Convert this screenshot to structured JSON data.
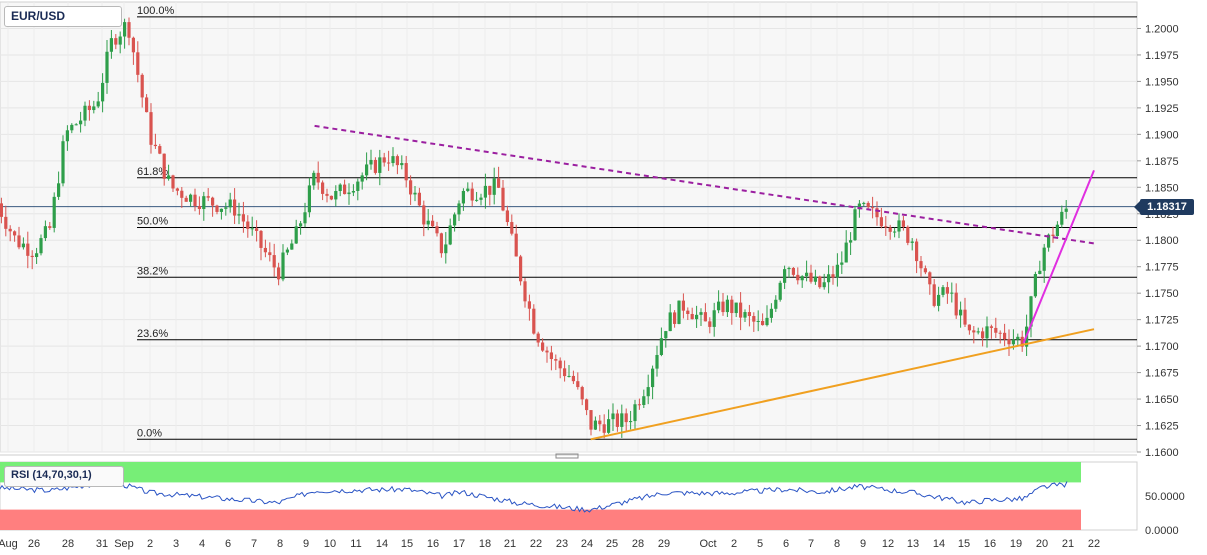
{
  "app": {
    "symbol": "EUR/USD"
  },
  "colors": {
    "up": "#2e9e4a",
    "down": "#d9534f",
    "fib": "#000000",
    "resistance": "#9b1fa0",
    "support": "#f0a020",
    "channel": "#e02fe0",
    "rsi_line": "#2a54c4",
    "rsi_overbought": "#77ee77",
    "rsi_oversold": "#ff7f7f",
    "grid": "#e6e6e6",
    "badge": "#1f3a5f"
  },
  "chart_data": {
    "type": "candlestick",
    "title": "",
    "symbol": "EUR/USD",
    "interval": "4H",
    "current_price": "1.18317",
    "ylim": [
      1.16,
      1.2025
    ],
    "y_ticks": [
      "1.2000",
      "1.1975",
      "1.1950",
      "1.1925",
      "1.1900",
      "1.1875",
      "1.1850",
      "1.1825",
      "1.1800",
      "1.1775",
      "1.1750",
      "1.1725",
      "1.1700",
      "1.1675",
      "1.1650",
      "1.1625",
      "1.1600"
    ],
    "x_ticks": [
      "Aug",
      "26",
      "28",
      "31",
      "Sep",
      "2",
      "3",
      "4",
      "6",
      "7",
      "8",
      "9",
      "10",
      "11",
      "14",
      "15",
      "16",
      "17",
      "18",
      "21",
      "22",
      "23",
      "24",
      "25",
      "28",
      "29",
      "Oct",
      "2",
      "5",
      "6",
      "7",
      "8",
      "9",
      "12",
      "13",
      "14",
      "15",
      "16",
      "19",
      "20",
      "21",
      "22"
    ],
    "fibonacci": [
      {
        "label": "100.0%",
        "value": 1.2011
      },
      {
        "label": "61.8%",
        "value": 1.1859
      },
      {
        "label": "50.0%",
        "value": 1.1812
      },
      {
        "label": "38.2%",
        "value": 1.1765
      },
      {
        "label": "23.6%",
        "value": 1.1706
      },
      {
        "label": "0.0%",
        "value": 1.1612
      }
    ],
    "anchors": [
      {
        "d": "Aug 24",
        "v": 1.1835
      },
      {
        "d": "Aug 25",
        "v": 1.18
      },
      {
        "d": "Aug 26",
        "v": 1.179
      },
      {
        "d": "Aug 27",
        "v": 1.181
      },
      {
        "d": "Aug 28",
        "v": 1.19
      },
      {
        "d": "Aug 30",
        "v": 1.193
      },
      {
        "d": "Aug 31",
        "v": 1.199
      },
      {
        "d": "Sep 1",
        "v": 1.2005
      },
      {
        "d": "Sep 2",
        "v": 1.19
      },
      {
        "d": "Sep 3",
        "v": 1.185
      },
      {
        "d": "Sep 4",
        "v": 1.184
      },
      {
        "d": "Sep 6",
        "v": 1.183
      },
      {
        "d": "Sep 7",
        "v": 1.18
      },
      {
        "d": "Sep 8",
        "v": 1.177
      },
      {
        "d": "Sep 9",
        "v": 1.1805
      },
      {
        "d": "Sep 10",
        "v": 1.186
      },
      {
        "d": "Sep 11",
        "v": 1.184
      },
      {
        "d": "Sep 14",
        "v": 1.188
      },
      {
        "d": "Sep 15",
        "v": 1.186
      },
      {
        "d": "Sep 16",
        "v": 1.182
      },
      {
        "d": "Sep 17",
        "v": 1.179
      },
      {
        "d": "Sep 18",
        "v": 1.1845
      },
      {
        "d": "Sep 20",
        "v": 1.185
      },
      {
        "d": "Sep 21",
        "v": 1.178
      },
      {
        "d": "Sep 22",
        "v": 1.1715
      },
      {
        "d": "Sep 23",
        "v": 1.1685
      },
      {
        "d": "Sep 24",
        "v": 1.167
      },
      {
        "d": "Sep 25",
        "v": 1.1625
      },
      {
        "d": "Sep 27",
        "v": 1.163
      },
      {
        "d": "Sep 28",
        "v": 1.1665
      },
      {
        "d": "Sep 29",
        "v": 1.172
      },
      {
        "d": "Sep 30",
        "v": 1.174
      },
      {
        "d": "Oct 1",
        "v": 1.172
      },
      {
        "d": "Oct 2",
        "v": 1.174
      },
      {
        "d": "Oct 4",
        "v": 1.1715
      },
      {
        "d": "Oct 5",
        "v": 1.178
      },
      {
        "d": "Oct 6",
        "v": 1.1765
      },
      {
        "d": "Oct 7",
        "v": 1.1755
      },
      {
        "d": "Oct 8",
        "v": 1.1775
      },
      {
        "d": "Oct 9",
        "v": 1.183
      },
      {
        "d": "Oct 11",
        "v": 1.1815
      },
      {
        "d": "Oct 12",
        "v": 1.18
      },
      {
        "d": "Oct 13",
        "v": 1.1745
      },
      {
        "d": "Oct 14",
        "v": 1.175
      },
      {
        "d": "Oct 15",
        "v": 1.171
      },
      {
        "d": "Oct 16",
        "v": 1.1715
      },
      {
        "d": "Oct 18",
        "v": 1.1705
      },
      {
        "d": "Oct 19",
        "v": 1.179
      },
      {
        "d": "Oct 20",
        "v": 1.1832
      }
    ],
    "trendlines": [
      {
        "name": "resistance",
        "style": "dashed",
        "from": {
          "d": "Sep 10",
          "v": 1.1908
        },
        "to": {
          "d": "Oct 21",
          "v": 1.1797
        }
      },
      {
        "name": "support",
        "style": "solid",
        "from": {
          "d": "Sep 25",
          "v": 1.1612
        },
        "to": {
          "d": "Oct 21",
          "v": 1.1716
        }
      },
      {
        "name": "channel",
        "style": "solid",
        "from": {
          "d": "Oct 18",
          "v": 1.1703
        },
        "to": {
          "d": "Oct 21",
          "v": 1.1866
        }
      }
    ],
    "rsi": {
      "label": "RSI (14,70,30,1)",
      "params": [
        14,
        70,
        30,
        1
      ],
      "ylim": [
        0,
        100
      ],
      "y_ticks": [
        "50.0000",
        "0.0000"
      ],
      "overbought": 70,
      "oversold": 30,
      "anchors": [
        {
          "d": "Aug 24",
          "v": 62
        },
        {
          "d": "Aug 27",
          "v": 58
        },
        {
          "d": "Aug 31",
          "v": 72
        },
        {
          "d": "Sep 2",
          "v": 55
        },
        {
          "d": "Sep 4",
          "v": 50
        },
        {
          "d": "Sep 8",
          "v": 40
        },
        {
          "d": "Sep 10",
          "v": 58
        },
        {
          "d": "Sep 15",
          "v": 60
        },
        {
          "d": "Sep 17",
          "v": 50
        },
        {
          "d": "Sep 18",
          "v": 56
        },
        {
          "d": "Sep 21",
          "v": 40
        },
        {
          "d": "Sep 24",
          "v": 32
        },
        {
          "d": "Sep 25",
          "v": 30
        },
        {
          "d": "Sep 29",
          "v": 55
        },
        {
          "d": "Oct 2",
          "v": 54
        },
        {
          "d": "Oct 5",
          "v": 60
        },
        {
          "d": "Oct 7",
          "v": 56
        },
        {
          "d": "Oct 9",
          "v": 64
        },
        {
          "d": "Oct 12",
          "v": 55
        },
        {
          "d": "Oct 14",
          "v": 45
        },
        {
          "d": "Oct 15",
          "v": 40
        },
        {
          "d": "Oct 16",
          "v": 44
        },
        {
          "d": "Oct 18",
          "v": 46
        },
        {
          "d": "Oct 19",
          "v": 63
        },
        {
          "d": "Oct 20",
          "v": 68
        }
      ]
    }
  }
}
